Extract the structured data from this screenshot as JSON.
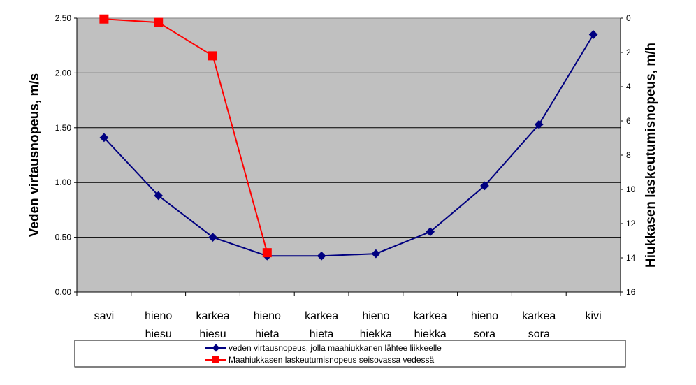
{
  "chart_data": {
    "type": "line",
    "categories": [
      [
        "savi"
      ],
      [
        "hieno",
        "hiesu"
      ],
      [
        "karkea",
        "hiesu"
      ],
      [
        "hieno",
        "hieta"
      ],
      [
        "karkea",
        "hieta"
      ],
      [
        "hieno",
        "hiekka"
      ],
      [
        "karkea",
        "hiekka"
      ],
      [
        "hieno",
        "sora"
      ],
      [
        "karkea",
        "sora"
      ],
      [
        "kivi"
      ]
    ],
    "ylabel": "Veden virtausnopeus, m/s",
    "y2label": "Hiukkasen laskeutumisnopeus, m/h",
    "ylim": [
      0,
      2.5
    ],
    "yticks": [
      "0.00",
      "0.50",
      "1.00",
      "1.50",
      "2.00",
      "2.50"
    ],
    "y2lim": [
      0,
      16
    ],
    "y2_inverted": true,
    "y2ticks": [
      "0",
      "2",
      "4",
      "6",
      "8",
      "10",
      "12",
      "14",
      "16"
    ],
    "grid": true,
    "legend_position": "bottom",
    "series": [
      {
        "name": "veden virtausnopeus, jolla maahiukkanen lähtee liikkeelle",
        "axis": "left",
        "color": "#000080",
        "marker": "diamond",
        "values": [
          1.41,
          0.88,
          0.5,
          0.33,
          0.33,
          0.35,
          0.55,
          0.97,
          1.53,
          2.35
        ]
      },
      {
        "name": "Maahiukkasen laskeutumisnopeus seisovassa vedessä",
        "axis": "right",
        "color": "#ff0000",
        "marker": "square",
        "values": [
          0.05,
          0.25,
          2.2,
          13.7,
          null,
          null,
          null,
          null,
          null,
          null
        ]
      }
    ]
  }
}
